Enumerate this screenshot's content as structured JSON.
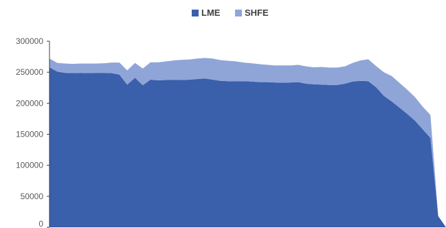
{
  "chart_data": {
    "type": "area",
    "stacked": true,
    "legend": {
      "position": "top"
    },
    "grid": false,
    "y_ticks": [
      0,
      50000,
      100000,
      150000,
      200000,
      250000,
      300000
    ],
    "y_tick_labels": [
      "0",
      "50000",
      "100000",
      "150000",
      "200000",
      "250000",
      "300000"
    ],
    "ylim": [
      0,
      300000
    ],
    "x": [
      0,
      1,
      2,
      3,
      4,
      5,
      6,
      7,
      8,
      9,
      10,
      11,
      12,
      13,
      14,
      15,
      16,
      17,
      18,
      19,
      20,
      21,
      22,
      23,
      24,
      25,
      26,
      27,
      28,
      29,
      30,
      31,
      32,
      33,
      34,
      35,
      36,
      37,
      38,
      39,
      40,
      41,
      42,
      43,
      44,
      45,
      46,
      47,
      48,
      49,
      50,
      51
    ],
    "series": [
      {
        "name": "LME",
        "color": "#3a5fab",
        "values": [
          258000,
          251000,
          249000,
          248500,
          249000,
          248500,
          249000,
          249000,
          248500,
          246000,
          230000,
          241000,
          229000,
          238000,
          237000,
          237500,
          237500,
          237500,
          238000,
          239000,
          240000,
          238000,
          236000,
          235500,
          235500,
          235500,
          235000,
          234000,
          234000,
          233500,
          233000,
          233500,
          234000,
          231500,
          230500,
          230000,
          229500,
          229500,
          231500,
          235000,
          236000,
          235500,
          226000,
          212000,
          203000,
          193000,
          183000,
          172000,
          158000,
          144000,
          18000,
          0
        ]
      },
      {
        "name": "SHFE",
        "color": "#8fa5d8",
        "values": [
          14000,
          14000,
          15000,
          15000,
          15000,
          15500,
          15000,
          15500,
          17000,
          19500,
          23000,
          24000,
          27000,
          28000,
          29000,
          30000,
          31500,
          32500,
          32500,
          33000,
          33000,
          34000,
          33500,
          33000,
          32000,
          30000,
          29500,
          29000,
          28000,
          27500,
          28000,
          27500,
          28000,
          28000,
          27500,
          28500,
          28000,
          28000,
          28000,
          30000,
          33000,
          35500,
          34000,
          38000,
          41000,
          40000,
          39000,
          38000,
          36500,
          37000,
          0,
          0
        ]
      }
    ]
  }
}
